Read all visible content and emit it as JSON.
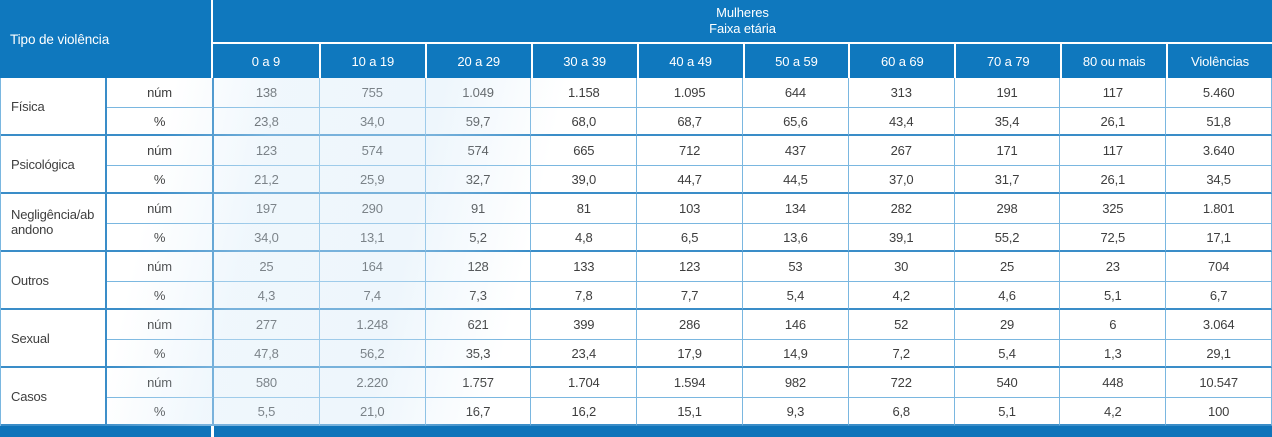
{
  "colors": {
    "header_blue": "#0f78be",
    "bar_blue": "#0f74ba",
    "border_light": "#7ab7e0",
    "border_strong": "#3a8dc8",
    "text_dark": "#3e3e3e",
    "header_text": "#ffffff"
  },
  "chart_data": {
    "type": "table",
    "corner_header": "Tipo de violência",
    "column_group_header": [
      "Mulheres",
      "Faixa etária"
    ],
    "columns": [
      "0 a 9",
      "10 a 19",
      "20 a 29",
      "30 a 39",
      "40 a 49",
      "50 a 59",
      "60 a 69",
      "70 a 79",
      "80 ou mais",
      "Violências"
    ],
    "measure_labels": [
      "núm",
      "%"
    ],
    "rows": [
      {
        "label": "Física",
        "num": [
          "138",
          "755",
          "1.049",
          "1.158",
          "1.095",
          "644",
          "313",
          "191",
          "117",
          "5.460"
        ],
        "pct": [
          "23,8",
          "34,0",
          "59,7",
          "68,0",
          "68,7",
          "65,6",
          "43,4",
          "35,4",
          "26,1",
          "51,8"
        ]
      },
      {
        "label": "Psicológica",
        "num": [
          "123",
          "574",
          "574",
          "665",
          "712",
          "437",
          "267",
          "171",
          "117",
          "3.640"
        ],
        "pct": [
          "21,2",
          "25,9",
          "32,7",
          "39,0",
          "44,7",
          "44,5",
          "37,0",
          "31,7",
          "26,1",
          "34,5"
        ]
      },
      {
        "label": "Negligência/abandono",
        "num": [
          "197",
          "290",
          "91",
          "81",
          "103",
          "134",
          "282",
          "298",
          "325",
          "1.801"
        ],
        "pct": [
          "34,0",
          "13,1",
          "5,2",
          "4,8",
          "6,5",
          "13,6",
          "39,1",
          "55,2",
          "72,5",
          "17,1"
        ]
      },
      {
        "label": "Outros",
        "num": [
          "25",
          "164",
          "128",
          "133",
          "123",
          "53",
          "30",
          "25",
          "23",
          "704"
        ],
        "pct": [
          "4,3",
          "7,4",
          "7,3",
          "7,8",
          "7,7",
          "5,4",
          "4,2",
          "4,6",
          "5,1",
          "6,7"
        ]
      },
      {
        "label": "Sexual",
        "num": [
          "277",
          "1.248",
          "621",
          "399",
          "286",
          "146",
          "52",
          "29",
          "6",
          "3.064"
        ],
        "pct": [
          "47,8",
          "56,2",
          "35,3",
          "23,4",
          "17,9",
          "14,9",
          "7,2",
          "5,4",
          "1,3",
          "29,1"
        ]
      },
      {
        "label": "Casos",
        "num": [
          "580",
          "2.220",
          "1.757",
          "1.704",
          "1.594",
          "982",
          "722",
          "540",
          "448",
          "10.547"
        ],
        "pct": [
          "5,5",
          "21,0",
          "16,7",
          "16,2",
          "15,1",
          "9,3",
          "6,8",
          "5,1",
          "4,2",
          "100"
        ]
      }
    ]
  }
}
